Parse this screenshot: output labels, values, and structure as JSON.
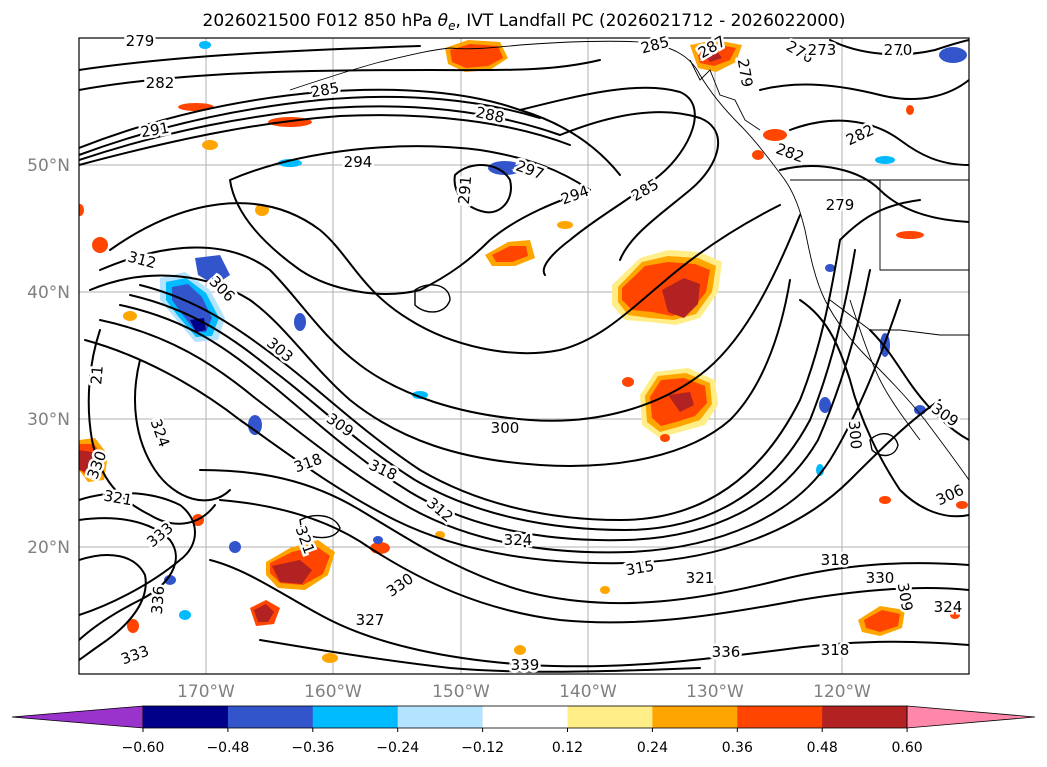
{
  "figure": {
    "title": "2026021500 F012 850 hPa θe, IVT Landfall PC (2026021712 - 2026022000)",
    "title_prefix": "2026021500 F012 850 hPa ",
    "title_theta": "θ",
    "title_sub": "e",
    "title_suffix": ", IVT Landfall PC (2026021712 - 2026022000)"
  },
  "map": {
    "lat_labels": [
      "50°N",
      "40°N",
      "30°N",
      "20°N"
    ],
    "lon_labels": [
      "170°W",
      "160°W",
      "150°W",
      "140°W",
      "130°W",
      "120°W"
    ],
    "contour_labels": [
      "279",
      "282",
      "285",
      "291",
      "294",
      "288",
      "297",
      "294",
      "285",
      "291",
      "285",
      "287",
      "279",
      "276",
      "273",
      "270",
      "282",
      "282",
      "279",
      "312",
      "306",
      "303",
      "309",
      "300",
      "300",
      "309",
      "306",
      "324",
      "318",
      "318",
      "321",
      "312",
      "324",
      "321",
      "315",
      "321",
      "318",
      "330",
      "324",
      "327",
      "330",
      "333",
      "336",
      "333",
      "339",
      "336",
      "318",
      "309",
      "21",
      "330"
    ]
  },
  "colorbar": {
    "ticks": [
      "−0.60",
      "−0.48",
      "−0.36",
      "−0.24",
      "−0.12",
      "0.12",
      "0.24",
      "0.36",
      "0.48",
      "0.60"
    ],
    "colors": [
      "#9933cc",
      "#000088",
      "#3355cc",
      "#00bbff",
      "#b3e3ff",
      "#ffffff",
      "#ffee88",
      "#ffa500",
      "#ff4500",
      "#b22222",
      "#ff88aa"
    ]
  },
  "chart_data": {
    "type": "heatmap",
    "title": "2026021500 F012 850 hPa θe, IVT Landfall PC (2026021712 - 2026022000)",
    "variable_contours": "850 hPa equivalent potential temperature (K)",
    "variable_shaded": "IVT Landfall PC",
    "colorbar_levels": [
      -0.6,
      -0.48,
      -0.36,
      -0.24,
      -0.12,
      0.12,
      0.24,
      0.36,
      0.48,
      0.6
    ],
    "lon_range": [
      "180°W",
      "110°W"
    ],
    "lat_range": [
      "10°N",
      "60°N"
    ]
  }
}
